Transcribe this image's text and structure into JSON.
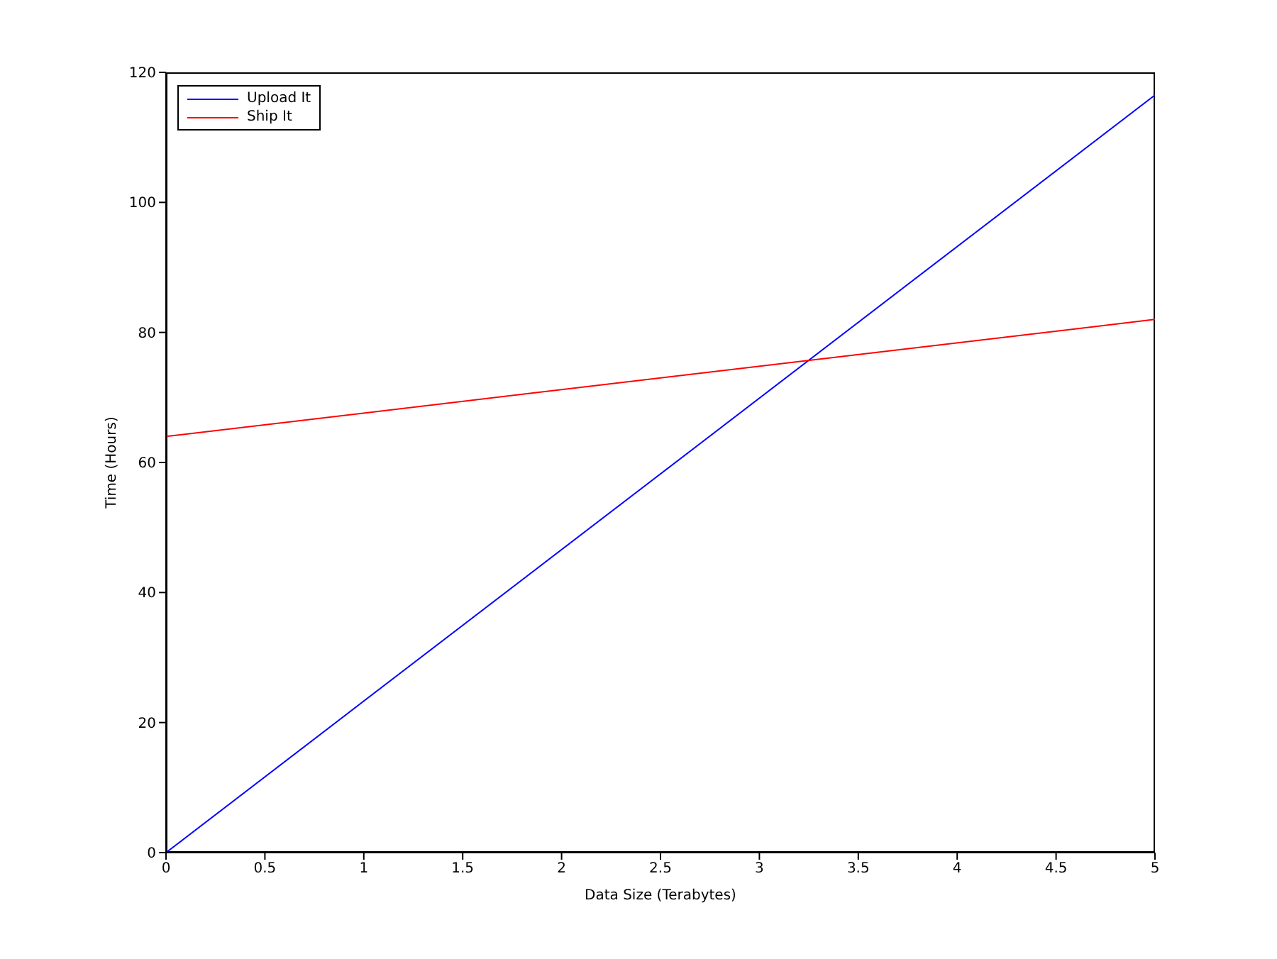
{
  "chart_data": {
    "type": "line",
    "xlabel": "Data Size (Terabytes)",
    "ylabel": "Time (Hours)",
    "x": [
      0,
      5
    ],
    "series": [
      {
        "name": "Upload It",
        "color": "#0000ff",
        "values": [
          0,
          116.5
        ]
      },
      {
        "name": "Ship It",
        "color": "#ff0000",
        "values": [
          64,
          82
        ]
      }
    ],
    "xlim": [
      0,
      5
    ],
    "xticks": [
      0,
      0.5,
      1,
      1.5,
      2,
      2.5,
      3,
      3.5,
      4,
      4.5,
      5
    ],
    "ylim": [
      0,
      120
    ],
    "yticks": [
      0,
      20,
      40,
      60,
      80,
      100,
      120
    ],
    "legend": "top left",
    "marker": "none",
    "line_style": "solid"
  }
}
